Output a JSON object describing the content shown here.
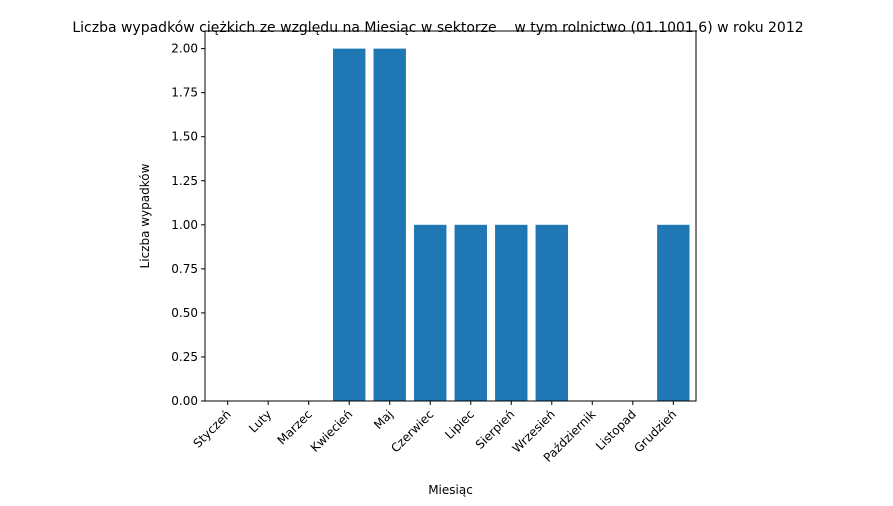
{
  "chart_data": {
    "type": "bar",
    "title": "Liczba wypadków ciężkich ze względu na Miesiąc w sektorze    w tym rolnictwo (01.1001.6) w roku 2012",
    "xlabel": "Miesiąc",
    "ylabel": "Liczba wypadków",
    "categories": [
      "Styczeń",
      "Luty",
      "Marzec",
      "Kwiecień",
      "Maj",
      "Czerwiec",
      "Lipiec",
      "Sierpień",
      "Wrzesień",
      "Październik",
      "Listopad",
      "Grudzień"
    ],
    "values": [
      0,
      0,
      0,
      2,
      2,
      1,
      1,
      1,
      1,
      0,
      0,
      1
    ],
    "ylim": [
      0,
      2.1
    ],
    "yticks": [
      "0.00",
      "0.25",
      "0.50",
      "0.75",
      "1.00",
      "1.25",
      "1.50",
      "1.75",
      "2.00"
    ],
    "grid": false,
    "bar_color": "#1f77b4"
  }
}
